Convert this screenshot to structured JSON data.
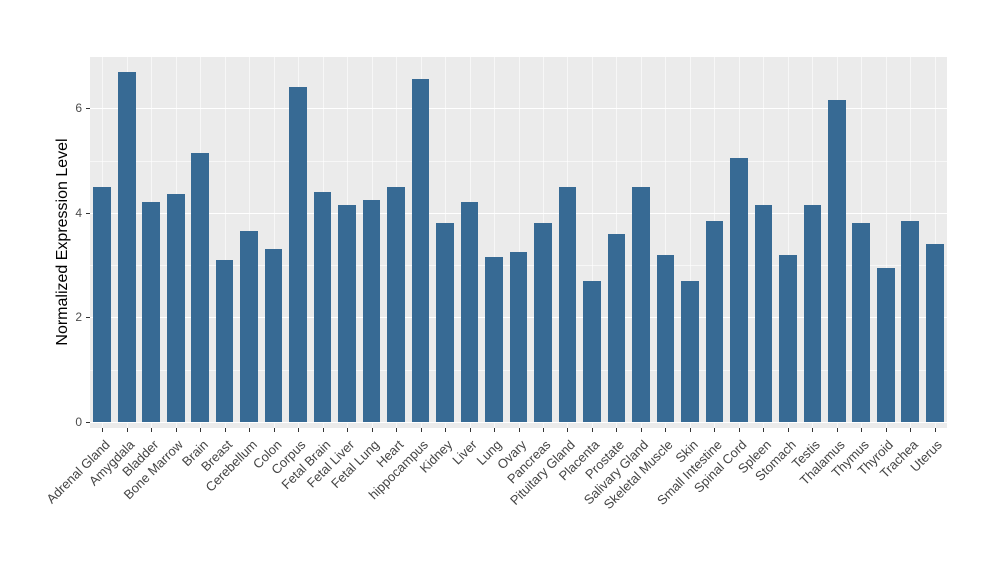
{
  "chart_data": {
    "type": "bar",
    "title": "",
    "xlabel": "",
    "ylabel": "Normalized Expression Level",
    "ylim": [
      0,
      7.05
    ],
    "yticks": [
      0,
      2,
      4,
      6
    ],
    "grid": true,
    "legend": false,
    "panel_bg": "#EBEBEB",
    "grid_major_color": "#FFFFFF",
    "grid_minor_color": "rgba(255,255,255,0.6)",
    "bar_color": "#376A94",
    "categories": [
      "Adrenal Gland",
      "Amygdala",
      "Bladder",
      "Bone Marrow",
      "Brain",
      "Breast",
      "Cerebellum",
      "Colon",
      "Corpus",
      "Fetal Brain",
      "Fetal Liver",
      "Fetal Lung",
      "Heart",
      "hippocampus",
      "Kidney",
      "Liver",
      "Lung",
      "Ovary",
      "Pancreas",
      "Pituitary Gland",
      "Placenta",
      "Prostate",
      "Salivary Gland",
      "Skeletal Muscle",
      "Skin",
      "Small Intestine",
      "Spinal Cord",
      "Spleen",
      "Stomach",
      "Testis",
      "Thalamus",
      "Thymus",
      "Thyroid",
      "Trachea",
      "Uterus"
    ],
    "values": [
      4.5,
      6.7,
      4.2,
      4.35,
      5.15,
      3.1,
      3.65,
      3.3,
      6.4,
      4.4,
      4.15,
      4.25,
      4.5,
      6.55,
      3.8,
      4.2,
      3.15,
      3.25,
      3.8,
      4.5,
      2.7,
      3.6,
      4.5,
      3.2,
      2.7,
      3.85,
      5.05,
      4.15,
      3.2,
      4.15,
      6.15,
      3.8,
      2.95,
      3.85,
      3.4
    ]
  }
}
